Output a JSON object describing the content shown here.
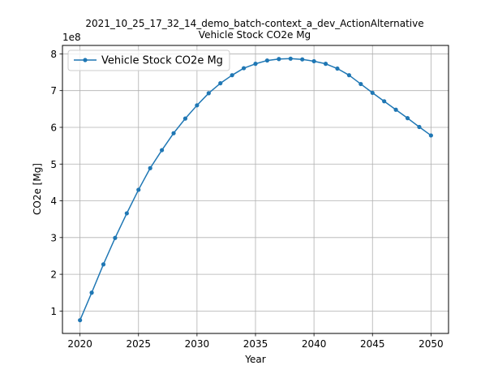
{
  "chart_data": {
    "type": "line",
    "title": "2021_10_25_17_32_14_demo_batch-context_a_dev_ActionAlternative",
    "subtitle": "Vehicle Stock CO2e Mg",
    "xlabel": "Year",
    "ylabel": "CO2e [Mg]",
    "y_scale_label": "1e8",
    "xlim": [
      2018.5,
      2051.5
    ],
    "ylim": [
      0.39,
      8.23
    ],
    "grid": true,
    "legend_position": "upper-left",
    "x_ticks": [
      2020,
      2025,
      2030,
      2035,
      2040,
      2045,
      2050
    ],
    "y_ticks": [
      1,
      2,
      3,
      4,
      5,
      6,
      7,
      8
    ],
    "series": [
      {
        "name": "Vehicle Stock CO2e Mg",
        "color": "#1f77b4",
        "marker": "point",
        "x": [
          2020,
          2021,
          2022,
          2023,
          2024,
          2025,
          2026,
          2027,
          2028,
          2029,
          2030,
          2031,
          2032,
          2033,
          2034,
          2035,
          2036,
          2037,
          2038,
          2039,
          2040,
          2041,
          2042,
          2043,
          2044,
          2045,
          2046,
          2047,
          2048,
          2049,
          2050
        ],
        "values": [
          0.75,
          1.5,
          2.27,
          2.99,
          3.66,
          4.3,
          4.89,
          5.38,
          5.84,
          6.24,
          6.6,
          6.93,
          7.2,
          7.42,
          7.61,
          7.73,
          7.82,
          7.86,
          7.87,
          7.85,
          7.8,
          7.73,
          7.6,
          7.42,
          7.18,
          6.94,
          6.71,
          6.48,
          6.25,
          6.01,
          5.78
        ]
      }
    ]
  }
}
